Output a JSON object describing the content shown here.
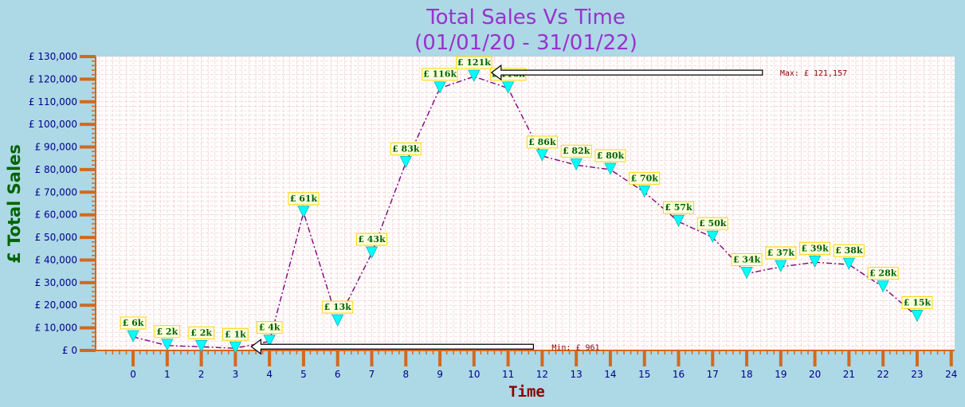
{
  "chart_data": {
    "type": "line",
    "title_line1": "Total Sales Vs Time",
    "title_line2": "(01/01/20 - 31/01/22)",
    "xlabel": "Time",
    "ylabel": "£ Total Sales",
    "x": [
      0,
      1,
      2,
      3,
      4,
      5,
      6,
      7,
      8,
      9,
      10,
      11,
      12,
      13,
      14,
      15,
      16,
      17,
      18,
      19,
      20,
      21,
      22,
      23
    ],
    "values": [
      6000,
      2200,
      1600,
      961,
      4000,
      61000,
      13000,
      43000,
      83000,
      116000,
      121157,
      116000,
      86000,
      82000,
      80000,
      70000,
      57000,
      50000,
      34000,
      37000,
      39000,
      38000,
      28000,
      15000
    ],
    "data_labels": [
      "£ 6k",
      "£ 2k",
      "£ 2k",
      "£ 1k",
      "£ 4k",
      "£ 61k",
      "£ 13k",
      "£ 43k",
      "£ 83k",
      "£ 116k",
      "£ 121k",
      "£ 116k",
      "£ 86k",
      "£ 82k",
      "£ 80k",
      "£ 70k",
      "£ 57k",
      "£ 50k",
      "£ 34k",
      "£ 37k",
      "£ 39k",
      "£ 38k",
      "£ 28k",
      "£ 15k"
    ],
    "x_ticks": [
      "0",
      "1",
      "2",
      "3",
      "4",
      "5",
      "6",
      "7",
      "8",
      "9",
      "10",
      "11",
      "12",
      "13",
      "14",
      "15",
      "16",
      "17",
      "18",
      "19",
      "20",
      "21",
      "22",
      "23",
      "24"
    ],
    "xlim": [
      -1.1,
      24.1
    ],
    "y_ticks": [
      "£ 0",
      "£ 10,000",
      "£ 20,000",
      "£ 30,000",
      "£ 40,000",
      "£ 50,000",
      "£ 60,000",
      "£ 70,000",
      "£ 80,000",
      "£ 90,000",
      "£ 100,000",
      "£ 110,000",
      "£ 120,000",
      "£ 130,000"
    ],
    "ylim": [
      0,
      130000
    ],
    "grid": true,
    "max_annotation": "Max: £ 121,157",
    "min_annotation": "Min: £ 961",
    "max_index": 10,
    "min_index": 3,
    "colors": {
      "background": "#add8e6",
      "plot_background": "#ffffff",
      "grid": "#f4c2c2",
      "line": "#800080",
      "marker": "#00ffff",
      "tick_marks": "#d2691e",
      "label_box_fill": "#ffffe0",
      "label_box_border": "#ffd700"
    }
  }
}
